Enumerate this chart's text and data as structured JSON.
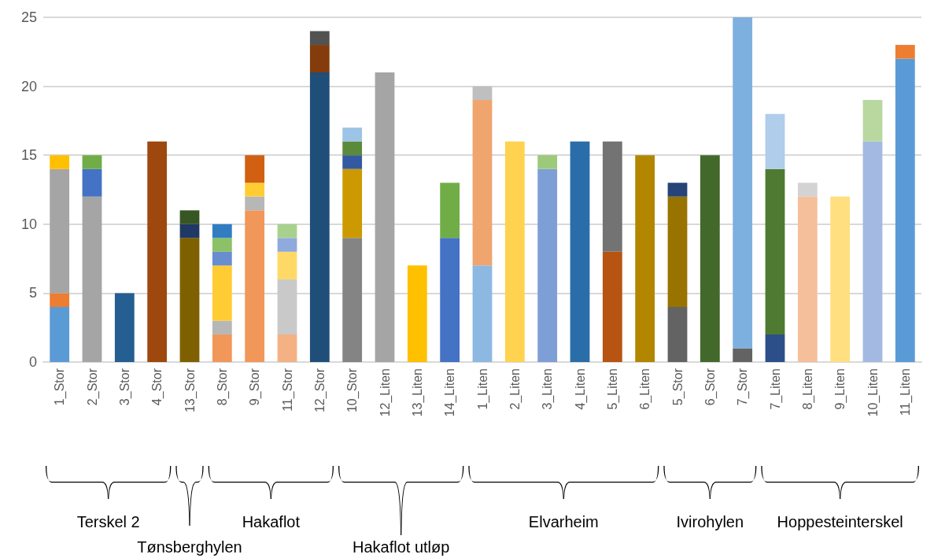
{
  "chart_data": {
    "type": "bar",
    "stacked": true,
    "categories": [
      "1_Stor",
      "2_Stor",
      "3_Stor",
      "4_Stor",
      "13_Stor",
      "8_Stor",
      "9_Stor",
      "11_Stor",
      "12_Stor",
      "10_Stor",
      "12_Liten",
      "13_Liten",
      "14_Liten",
      "1_Liten",
      "2_Liten",
      "3_Liten",
      "4_Liten",
      "5_Liten",
      "6_Liten",
      "5_Stor",
      "6_Stor",
      "7_Stor",
      "7_Liten",
      "8_Liten",
      "9_Liten",
      "10_Liten",
      "11_Liten"
    ],
    "series": [
      {
        "values": [
          4,
          12,
          5,
          16,
          9,
          2,
          11,
          2,
          21,
          9,
          21,
          7,
          9,
          7,
          16,
          14,
          16,
          8,
          15,
          4,
          15,
          1,
          2,
          12,
          12,
          16,
          22
        ],
        "colors": [
          "#5b9bd5",
          "#a5a5a5",
          "#255e91",
          "#9e480e",
          "#7f6000",
          "#f1975a",
          "#f1975a",
          "#f4b183",
          "#1f4e79",
          "#848484",
          "#a5a5a5",
          "#ffc000",
          "#4472c4",
          "#8db8e2",
          "#ffd34f",
          "#7e9ed6",
          "#2a6ea9",
          "#b85411",
          "#b38600",
          "#636363",
          "#43682b",
          "#636363",
          "#2c4f8a",
          "#f6bf9b",
          "#ffdf80",
          "#a3b9e1",
          "#5b9bd5"
        ]
      },
      {
        "values": [
          1,
          2,
          null,
          null,
          1,
          1,
          1,
          4,
          2,
          5,
          null,
          null,
          4,
          12,
          null,
          1,
          null,
          8,
          null,
          8,
          null,
          24,
          12,
          1,
          null,
          3,
          1
        ],
        "colors": [
          "#ed7d31",
          "#4472c4",
          null,
          null,
          "#203864",
          "#b7b7b7",
          "#b7b7b7",
          "#c9c9c9",
          "#843c0c",
          "#cc9a00",
          null,
          null,
          "#70ad47",
          "#f0a56f",
          null,
          "#9cc97a",
          null,
          "#737373",
          null,
          "#997300",
          null,
          "#7eb0df",
          "#4f7a31",
          "#d3d3d3",
          null,
          "#b9d8a0",
          "#ed7d31"
        ]
      },
      {
        "values": [
          9,
          1,
          null,
          null,
          1,
          4,
          1,
          2,
          1,
          1,
          null,
          null,
          null,
          1,
          null,
          null,
          null,
          null,
          null,
          1,
          null,
          null,
          4,
          null,
          null,
          null,
          null
        ],
        "colors": [
          "#a5a5a5",
          "#70ad47",
          null,
          null,
          "#375623",
          "#ffcd33",
          "#ffcd33",
          "#ffd966",
          "#525252",
          "#335aa1",
          null,
          null,
          null,
          "#bfbfbf",
          null,
          null,
          null,
          null,
          null,
          "#264478",
          null,
          null,
          "#b0cdea",
          null,
          null,
          null,
          null
        ]
      },
      {
        "values": [
          1,
          null,
          null,
          null,
          null,
          1,
          2,
          1,
          null,
          1,
          null,
          null,
          null,
          null,
          null,
          null,
          null,
          null,
          null,
          null,
          null,
          null,
          null,
          null,
          null,
          null,
          null
        ],
        "colors": [
          "#ffc000",
          null,
          null,
          null,
          null,
          "#698ed0",
          "#d26012",
          "#8faadc",
          null,
          "#5a8a3a",
          null,
          null,
          null,
          null,
          null,
          null,
          null,
          null,
          null,
          null,
          null,
          null,
          null,
          null,
          null,
          null,
          null
        ]
      },
      {
        "values": [
          null,
          null,
          null,
          null,
          null,
          1,
          null,
          1,
          null,
          1,
          null,
          null,
          null,
          null,
          null,
          null,
          null,
          null,
          null,
          null,
          null,
          null,
          null,
          null,
          null,
          null,
          null
        ],
        "colors": [
          null,
          null,
          null,
          null,
          null,
          "#8cc168",
          null,
          "#a9d18e",
          null,
          "#9dc3e6",
          null,
          null,
          null,
          null,
          null,
          null,
          null,
          null,
          null,
          null,
          null,
          null,
          null,
          null,
          null,
          null,
          null
        ]
      },
      {
        "values": [
          null,
          null,
          null,
          null,
          null,
          1,
          null,
          null,
          null,
          null,
          null,
          null,
          null,
          null,
          null,
          null,
          null,
          null,
          null,
          null,
          null,
          null,
          null,
          null,
          null,
          null,
          null
        ],
        "colors": [
          null,
          null,
          null,
          null,
          null,
          "#327dc2",
          null,
          null,
          null,
          null,
          null,
          null,
          null,
          null,
          null,
          null,
          null,
          null,
          null,
          null,
          null,
          null,
          null,
          null,
          null,
          null,
          null
        ]
      }
    ],
    "ylim": [
      0,
      25
    ],
    "yticks": [
      0,
      5,
      10,
      15,
      20,
      25
    ],
    "grid": "y",
    "annotations": [
      "Terskel 2",
      "Tønsberghylen",
      "Hakaflot",
      "Hakaflot utløp",
      "Elvarheim",
      "Ivirohylen",
      "Hoppesteinterskel"
    ]
  }
}
